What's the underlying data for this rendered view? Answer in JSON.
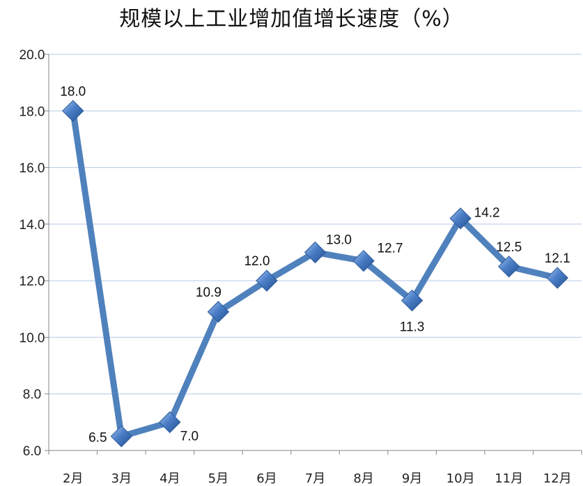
{
  "chart_data": {
    "type": "line",
    "title": "规模以上工业增加值增长速度（%）",
    "categories": [
      "2月",
      "3月",
      "4月",
      "5月",
      "6月",
      "7月",
      "8月",
      "9月",
      "10月",
      "11月",
      "12月"
    ],
    "values": [
      18.0,
      6.5,
      7.0,
      10.9,
      12.0,
      13.0,
      12.7,
      11.3,
      14.2,
      12.5,
      12.1
    ],
    "data_labels": [
      "18.0",
      "6.5",
      "7.0",
      "10.9",
      "12.0",
      "13.0",
      "12.7",
      "11.3",
      "14.2",
      "12.5",
      "12.1"
    ],
    "y_ticks": [
      "6.0",
      "8.0",
      "10.0",
      "12.0",
      "14.0",
      "16.0",
      "18.0",
      "20.0"
    ],
    "ylim": [
      6.0,
      20.0
    ],
    "xlabel": "",
    "ylabel": "",
    "grid": true,
    "legend": "none",
    "colors": {
      "line": "#4f81bd",
      "marker": "#4a7ec7",
      "grid": "#b4c7e7",
      "axis": "#868686"
    }
  }
}
